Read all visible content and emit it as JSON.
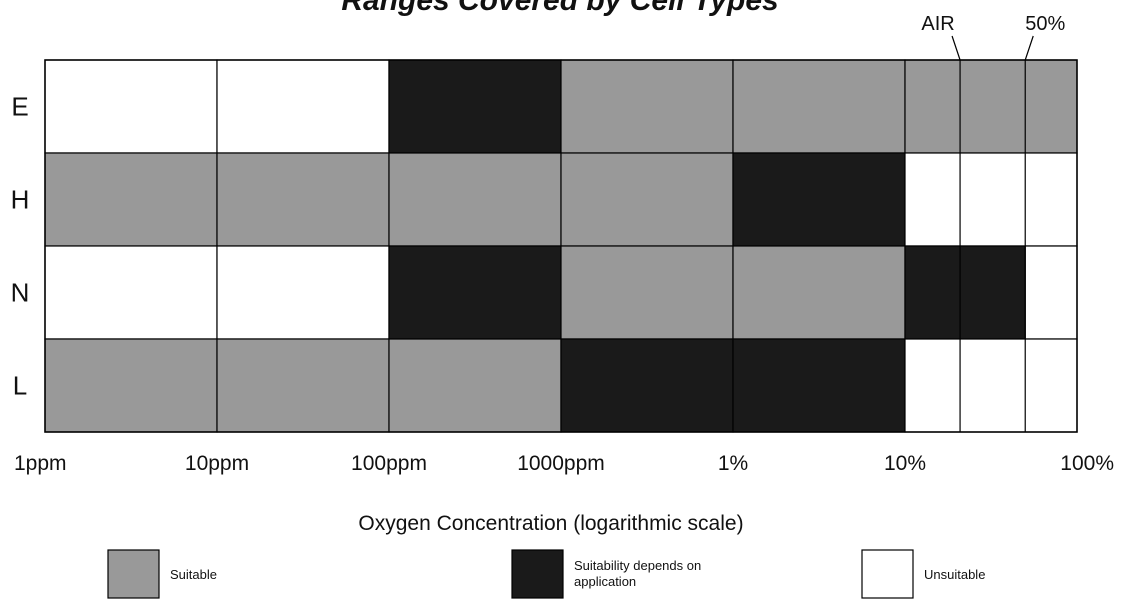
{
  "colors": {
    "suitable": "#999999",
    "depends": "#1a1a1a",
    "unsuitable": "#ffffff",
    "border": "#000000"
  },
  "chart_data": {
    "type": "heatmap",
    "title": "Ranges Covered by Cell Types",
    "xlabel": "Oxygen Concentration (logarithmic scale)",
    "x_scale": "log",
    "x_ticks": [
      "1ppm",
      "10ppm",
      "100ppm",
      "1000ppm",
      "1%",
      "10%",
      "100%"
    ],
    "x_tick_values_ppm": [
      1,
      10,
      100,
      1000,
      10000,
      100000,
      1000000
    ],
    "markers": [
      {
        "label": "AIR",
        "value_percent": 20.9
      },
      {
        "label": "50%",
        "value_percent": 50
      }
    ],
    "rows": [
      {
        "label": "E",
        "segments": [
          {
            "from": "1ppm",
            "to": "100ppm",
            "status": "unsuitable"
          },
          {
            "from": "100ppm",
            "to": "1000ppm",
            "status": "depends"
          },
          {
            "from": "1000ppm",
            "to": "100%",
            "status": "suitable"
          }
        ]
      },
      {
        "label": "H",
        "segments": [
          {
            "from": "1ppm",
            "to": "1%",
            "status": "suitable"
          },
          {
            "from": "1%",
            "to": "10%",
            "status": "depends"
          },
          {
            "from": "10%",
            "to": "100%",
            "status": "unsuitable"
          }
        ]
      },
      {
        "label": "N",
        "segments": [
          {
            "from": "1ppm",
            "to": "100ppm",
            "status": "unsuitable"
          },
          {
            "from": "100ppm",
            "to": "1000ppm",
            "status": "depends"
          },
          {
            "from": "1000ppm",
            "to": "10%",
            "status": "suitable"
          },
          {
            "from": "10%",
            "to": "50%",
            "status": "depends"
          },
          {
            "from": "50%",
            "to": "100%",
            "status": "unsuitable"
          }
        ]
      },
      {
        "label": "L",
        "segments": [
          {
            "from": "1ppm",
            "to": "1000ppm",
            "status": "suitable"
          },
          {
            "from": "1000ppm",
            "to": "10%",
            "status": "depends"
          },
          {
            "from": "10%",
            "to": "100%",
            "status": "unsuitable"
          }
        ]
      }
    ],
    "legend": [
      {
        "status": "suitable",
        "label": "Suitable"
      },
      {
        "status": "depends",
        "label_lines": [
          "Suitability depends on",
          "application"
        ]
      },
      {
        "status": "unsuitable",
        "label": "Unsuitable"
      }
    ]
  }
}
